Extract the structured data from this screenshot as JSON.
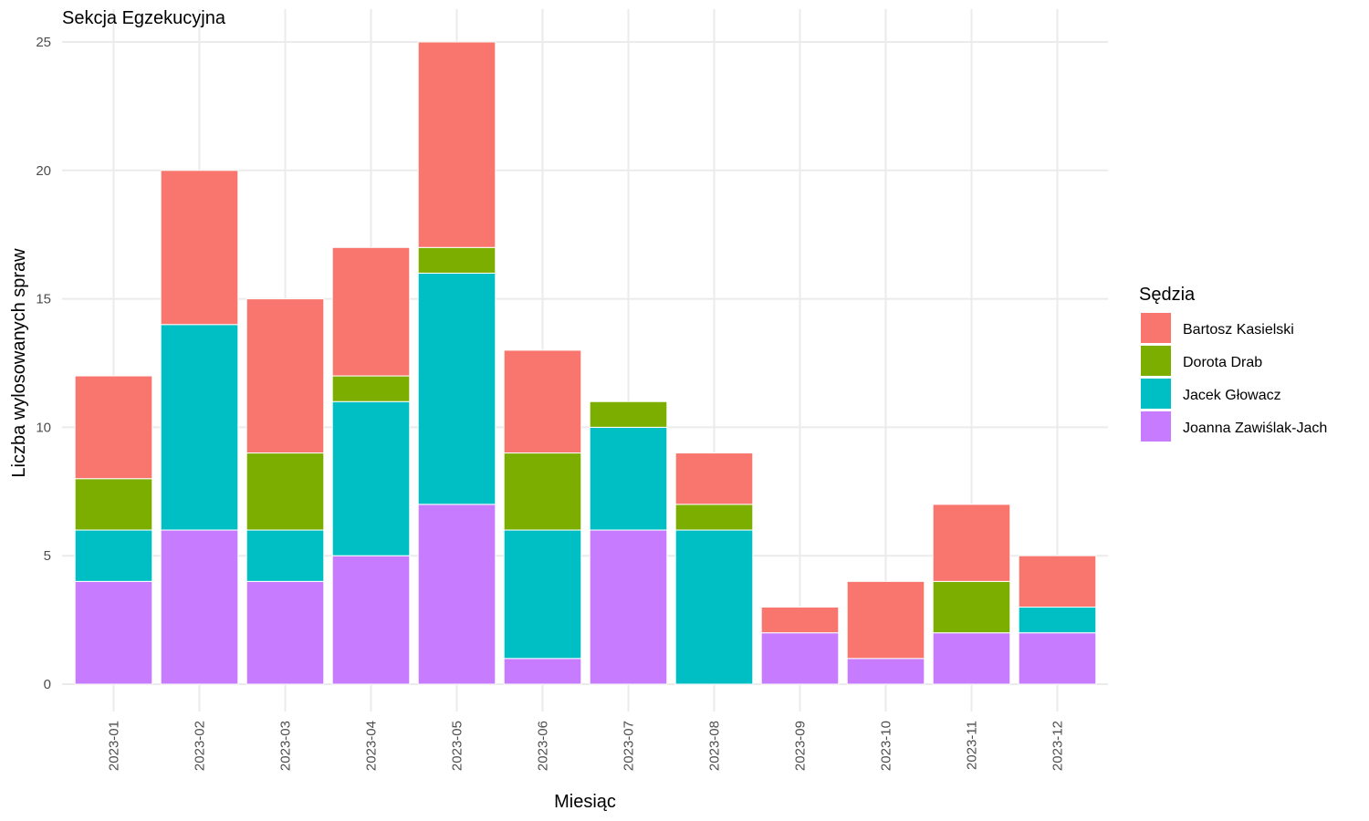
{
  "chart_data": {
    "type": "bar",
    "stacked": true,
    "title": "Sekcja Egzekucyjna",
    "xlabel": "Miesiąc",
    "ylabel": "Liczba wylosowanych spraw",
    "ylim": [
      0,
      25
    ],
    "yticks": [
      0,
      5,
      10,
      15,
      20,
      25
    ],
    "grid": true,
    "legend_title": "Sędzia",
    "legend_position": "right",
    "categories": [
      "2023-01",
      "2023-02",
      "2023-03",
      "2023-04",
      "2023-05",
      "2023-06",
      "2023-07",
      "2023-08",
      "2023-09",
      "2023-10",
      "2023-11",
      "2023-12"
    ],
    "series": [
      {
        "name": "Joanna Zawiślak-Jach",
        "color": "#C77CFF",
        "values": [
          4,
          6,
          4,
          5,
          7,
          1,
          6,
          0,
          2,
          1,
          2,
          2
        ]
      },
      {
        "name": "Jacek Głowacz",
        "color": "#00BFC4",
        "values": [
          2,
          8,
          2,
          6,
          9,
          5,
          4,
          6,
          0,
          0,
          0,
          1
        ]
      },
      {
        "name": "Dorota Drab",
        "color": "#7CAE00",
        "values": [
          2,
          0,
          3,
          1,
          1,
          3,
          1,
          1,
          0,
          0,
          2,
          0
        ]
      },
      {
        "name": "Bartosz Kasielski",
        "color": "#F8766D",
        "values": [
          4,
          6,
          6,
          5,
          8,
          4,
          0,
          2,
          1,
          3,
          3,
          2
        ]
      }
    ],
    "legend_order": [
      "Bartosz Kasielski",
      "Dorota Drab",
      "Jacek Głowacz",
      "Joanna Zawiślak-Jach"
    ]
  }
}
